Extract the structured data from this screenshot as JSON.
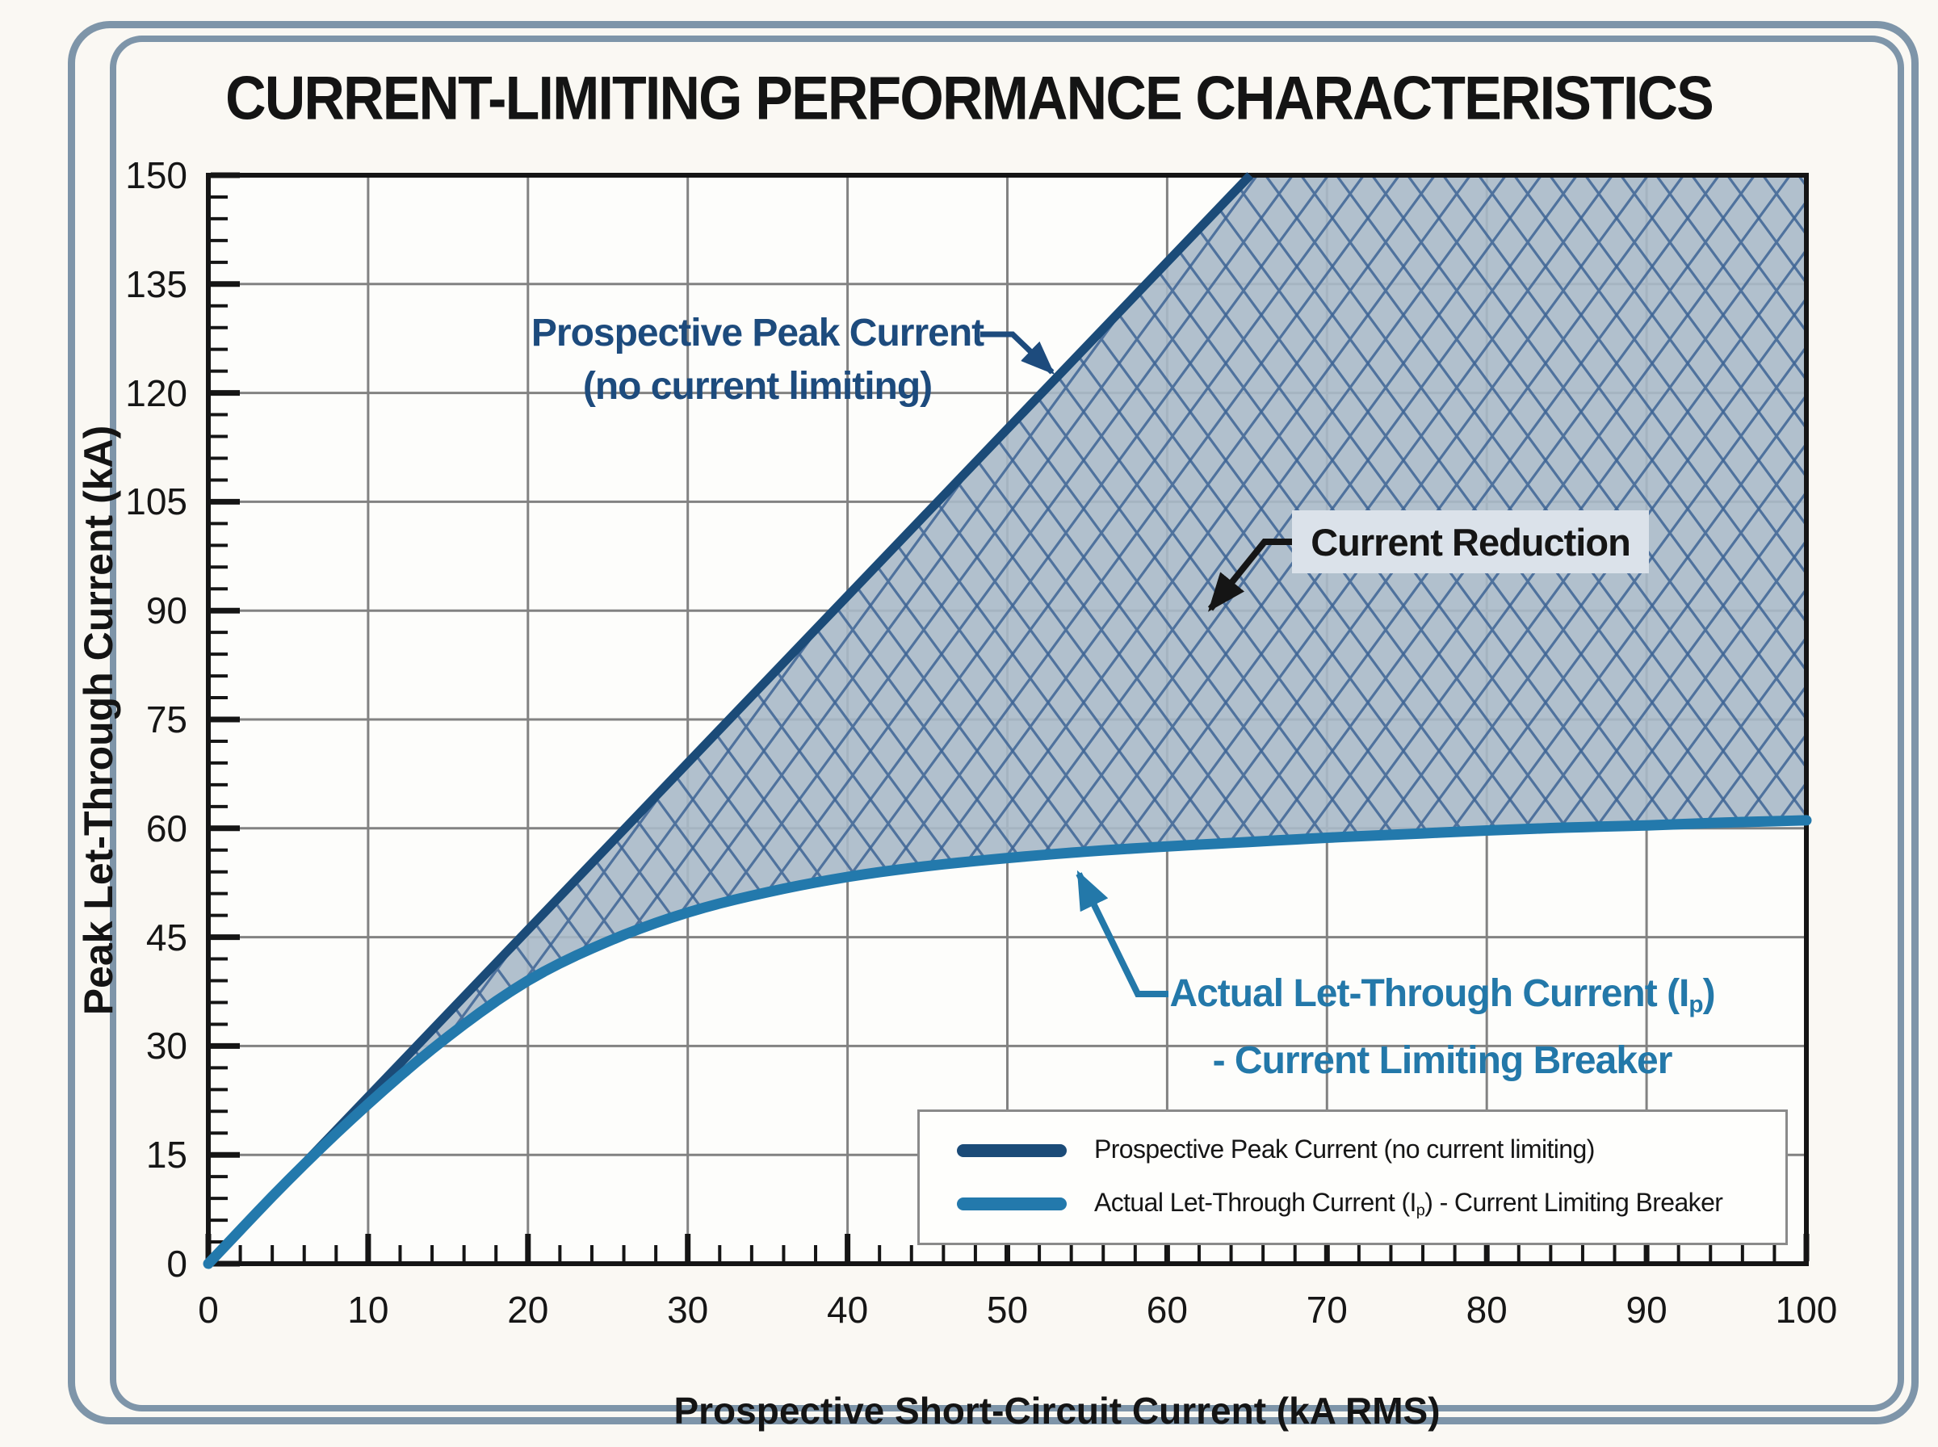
{
  "title": "CURRENT-LIMITING PERFORMANCE CHARACTERISTICS",
  "chart_data": {
    "type": "line",
    "title": "CURRENT-LIMITING PERFORMANCE CHARACTERISTICS",
    "xlabel": "Prospective Short-Circuit Current (kA RMS)",
    "ylabel": "Peak Let-Through Current (kA)",
    "xlim": [
      0,
      100
    ],
    "ylim": [
      0,
      150
    ],
    "x_major_step": 10,
    "x_minor_step": 2,
    "y_major_step": 15,
    "y_minor_step": 3,
    "grid": true,
    "legend_position": "bottom-right",
    "series": [
      {
        "name": "Prospective Peak Current (no current limiting)",
        "color": "#1b4b78",
        "x": [
          0,
          65.2
        ],
        "values": [
          0,
          150
        ]
      },
      {
        "name": "Actual Let-Through Current (Ip) - Current Limiting Breaker",
        "color": "#2379ac",
        "x": [
          0,
          5,
          10,
          15,
          20,
          25,
          30,
          35,
          40,
          45,
          50,
          55,
          60,
          65,
          70,
          75,
          80,
          85,
          90,
          95,
          100
        ],
        "values": [
          0,
          11.5,
          22,
          31.3,
          39,
          44.4,
          48.4,
          51.2,
          53.3,
          54.8,
          55.9,
          56.8,
          57.5,
          58.1,
          58.7,
          59.2,
          59.7,
          60.1,
          60.4,
          60.8,
          61.1
        ]
      }
    ],
    "shaded_region": {
      "label": "Current Reduction",
      "fill": "#a8b9c8",
      "hatch_color": "#3e6494"
    }
  },
  "annotations": {
    "peak": {
      "line1": "Prospective Peak Current",
      "line2": "(no current limiting)",
      "color": "#1d4b7d"
    },
    "reduction": {
      "label": "Current Reduction",
      "bg": "#dbe2ea"
    },
    "actual": {
      "line1_pre": "Actual Let-Through Current (I",
      "line1_sub": "p",
      "line1_post": ")",
      "line2": "- Current Limiting Breaker",
      "color": "#2378a9"
    }
  },
  "legend": {
    "items": [
      {
        "pre": "Prospective Peak Current (no current limiting)",
        "sub": "",
        "post": ""
      },
      {
        "pre": "Actual Let-Through Current (I",
        "sub": "p",
        "post": ") - Current Limiting Breaker"
      }
    ]
  }
}
